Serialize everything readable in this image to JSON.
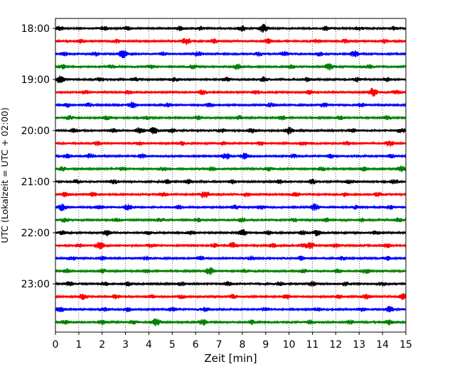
{
  "chart_data": {
    "type": "line",
    "title": "",
    "xlabel": "Zeit  [min]",
    "ylabel": "UTC (Lokalzeit = UTC + 02:00)",
    "xlim": [
      0,
      15
    ],
    "x_ticks": [
      "0",
      "1",
      "2",
      "3",
      "4",
      "5",
      "6",
      "7",
      "8",
      "9",
      "10",
      "11",
      "12",
      "13",
      "14",
      "15"
    ],
    "y_ticks": [
      {
        "label": "18:00",
        "row": 0
      },
      {
        "label": "19:00",
        "row": 4
      },
      {
        "label": "20:00",
        "row": 8
      },
      {
        "label": "21:00",
        "row": 12
      },
      {
        "label": "22:00",
        "row": 16
      },
      {
        "label": "23:00",
        "row": 20
      }
    ],
    "grid": "vertical dotted at each minute",
    "trace_interval_minutes": 15,
    "trace_count": 24,
    "trace_colors": [
      "#000000",
      "#ff0000",
      "#0000ff",
      "#008000"
    ],
    "series_note_free": true,
    "bursts": [
      [
        [
          0.2,
          0.5
        ],
        [
          2.1,
          0.5
        ],
        [
          3.1,
          0.5
        ],
        [
          5.3,
          0.5
        ],
        [
          6.2,
          0.5
        ],
        [
          8.0,
          0.7
        ],
        [
          8.9,
          1.2
        ],
        [
          11.6,
          0.5
        ],
        [
          13.0,
          0.5
        ],
        [
          14.5,
          0.5
        ]
      ],
      [
        [
          1.1,
          0.5
        ],
        [
          2.6,
          0.5
        ],
        [
          5.6,
          1.0
        ],
        [
          6.8,
          0.5
        ],
        [
          9.1,
          0.6
        ],
        [
          11.2,
          0.5
        ],
        [
          12.4,
          0.5
        ],
        [
          14.1,
          0.5
        ]
      ],
      [
        [
          0.4,
          0.5
        ],
        [
          1.7,
          0.5
        ],
        [
          2.9,
          1.2
        ],
        [
          4.6,
          0.5
        ],
        [
          6.1,
          0.6
        ],
        [
          8.7,
          0.5
        ],
        [
          9.8,
          0.6
        ],
        [
          11.3,
          0.5
        ],
        [
          12.8,
          0.8
        ]
      ],
      [
        [
          0.3,
          0.5
        ],
        [
          2.4,
          0.5
        ],
        [
          4.1,
          0.5
        ],
        [
          5.9,
          0.6
        ],
        [
          7.8,
          0.8
        ],
        [
          10.1,
          0.5
        ],
        [
          11.7,
          0.9
        ],
        [
          13.4,
          0.5
        ]
      ],
      [
        [
          0.2,
          1.0
        ],
        [
          1.9,
          0.5
        ],
        [
          3.4,
          0.5
        ],
        [
          5.1,
          0.5
        ],
        [
          7.3,
          0.5
        ],
        [
          8.9,
          0.6
        ],
        [
          10.8,
          0.5
        ],
        [
          12.9,
          0.6
        ],
        [
          14.2,
          0.5
        ]
      ],
      [
        [
          1.3,
          0.5
        ],
        [
          3.1,
          0.5
        ],
        [
          6.3,
          0.6
        ],
        [
          8.6,
          0.5
        ],
        [
          10.9,
          0.5
        ],
        [
          13.6,
          1.2
        ],
        [
          14.6,
          0.5
        ]
      ],
      [
        [
          0.5,
          0.5
        ],
        [
          1.4,
          0.5
        ],
        [
          3.3,
          0.8
        ],
        [
          4.8,
          0.5
        ],
        [
          6.6,
          0.5
        ],
        [
          9.2,
          0.5
        ],
        [
          11.5,
          0.6
        ],
        [
          13.1,
          0.5
        ]
      ],
      [
        [
          0.6,
          0.5
        ],
        [
          2.2,
          0.5
        ],
        [
          3.9,
          0.5
        ],
        [
          6.1,
          0.5
        ],
        [
          7.9,
          0.5
        ],
        [
          9.7,
          0.6
        ],
        [
          12.2,
          0.5
        ],
        [
          14.2,
          0.5
        ]
      ],
      [
        [
          0.8,
          0.5
        ],
        [
          2.5,
          0.5
        ],
        [
          3.6,
          0.8
        ],
        [
          4.2,
          0.9
        ],
        [
          5.0,
          0.5
        ],
        [
          7.1,
          0.5
        ],
        [
          8.4,
          0.5
        ],
        [
          10.0,
          1.1
        ],
        [
          12.7,
          0.5
        ],
        [
          14.8,
          0.6
        ]
      ],
      [
        [
          1.8,
          0.5
        ],
        [
          3.6,
          0.5
        ],
        [
          5.4,
          0.5
        ],
        [
          7.2,
          0.5
        ],
        [
          8.8,
          0.5
        ],
        [
          10.6,
          0.5
        ],
        [
          12.5,
          0.5
        ],
        [
          14.3,
          0.8
        ]
      ],
      [
        [
          0.5,
          0.5
        ],
        [
          1.5,
          0.7
        ],
        [
          3.7,
          0.5
        ],
        [
          7.3,
          0.9
        ],
        [
          8.1,
          0.8
        ],
        [
          10.2,
          0.5
        ],
        [
          11.8,
          0.5
        ],
        [
          14.4,
          0.5
        ]
      ],
      [
        [
          0.3,
          0.5
        ],
        [
          2.9,
          0.5
        ],
        [
          4.6,
          0.5
        ],
        [
          6.7,
          0.5
        ],
        [
          9.1,
          0.5
        ],
        [
          11.4,
          0.5
        ],
        [
          13.2,
          0.5
        ],
        [
          14.8,
          0.8
        ]
      ],
      [
        [
          0.9,
          0.5
        ],
        [
          2.5,
          0.6
        ],
        [
          4.8,
          0.5
        ],
        [
          5.7,
          0.6
        ],
        [
          7.6,
          0.5
        ],
        [
          9.6,
          0.5
        ],
        [
          11.0,
          0.6
        ],
        [
          12.6,
          0.5
        ],
        [
          14.5,
          0.6
        ]
      ],
      [
        [
          0.4,
          0.6
        ],
        [
          1.6,
          0.5
        ],
        [
          4.6,
          0.5
        ],
        [
          6.4,
          1.1
        ],
        [
          8.2,
          0.5
        ],
        [
          10.3,
          0.5
        ],
        [
          12.4,
          0.5
        ],
        [
          13.8,
          0.5
        ]
      ],
      [
        [
          0.3,
          1.0
        ],
        [
          1.9,
          0.5
        ],
        [
          3.1,
          0.8
        ],
        [
          5.3,
          0.5
        ],
        [
          7.7,
          0.5
        ],
        [
          8.8,
          0.5
        ],
        [
          11.1,
          0.9
        ],
        [
          12.9,
          0.5
        ],
        [
          14.3,
          0.5
        ]
      ],
      [
        [
          0.4,
          0.5
        ],
        [
          2.6,
          0.5
        ],
        [
          4.5,
          0.5
        ],
        [
          6.1,
          0.5
        ],
        [
          8.0,
          0.5
        ],
        [
          10.2,
          0.5
        ],
        [
          11.6,
          0.5
        ],
        [
          13.1,
          0.5
        ],
        [
          14.7,
          0.5
        ]
      ],
      [
        [
          0.3,
          0.5
        ],
        [
          2.2,
          0.8
        ],
        [
          4.0,
          0.5
        ],
        [
          5.8,
          0.5
        ],
        [
          8.0,
          0.9
        ],
        [
          9.1,
          0.5
        ],
        [
          10.6,
          0.5
        ],
        [
          11.2,
          0.8
        ],
        [
          13.7,
          0.5
        ]
      ],
      [
        [
          1.0,
          0.5
        ],
        [
          1.9,
          1.0
        ],
        [
          4.1,
          0.5
        ],
        [
          6.8,
          0.5
        ],
        [
          7.6,
          0.8
        ],
        [
          9.3,
          0.5
        ],
        [
          10.6,
          0.5
        ],
        [
          10.9,
          0.9
        ],
        [
          12.0,
          0.5
        ],
        [
          14.2,
          0.5
        ]
      ],
      [
        [
          0.7,
          0.5
        ],
        [
          2.0,
          0.5
        ],
        [
          3.9,
          0.5
        ],
        [
          6.2,
          0.5
        ],
        [
          8.4,
          0.5
        ],
        [
          10.5,
          0.5
        ],
        [
          12.3,
          0.5
        ],
        [
          14.2,
          0.5
        ]
      ],
      [
        [
          0.5,
          0.5
        ],
        [
          2.0,
          0.5
        ],
        [
          3.9,
          0.5
        ],
        [
          6.6,
          1.1
        ],
        [
          8.1,
          0.5
        ],
        [
          10.6,
          0.5
        ],
        [
          12.1,
          0.5
        ],
        [
          13.3,
          0.6
        ]
      ],
      [
        [
          0.6,
          0.5
        ],
        [
          2.1,
          0.5
        ],
        [
          3.1,
          0.5
        ],
        [
          5.4,
          0.5
        ],
        [
          7.4,
          0.5
        ],
        [
          9.6,
          0.5
        ],
        [
          11.0,
          0.6
        ],
        [
          12.4,
          0.5
        ],
        [
          14.0,
          0.5
        ]
      ],
      [
        [
          1.2,
          0.8
        ],
        [
          2.6,
          0.5
        ],
        [
          4.1,
          0.5
        ],
        [
          5.4,
          0.5
        ],
        [
          7.6,
          0.5
        ],
        [
          9.9,
          0.5
        ],
        [
          12.1,
          0.5
        ],
        [
          13.3,
          0.6
        ],
        [
          14.9,
          0.8
        ]
      ],
      [
        [
          0.2,
          0.8
        ],
        [
          2.1,
          0.5
        ],
        [
          3.1,
          0.5
        ],
        [
          5.0,
          0.5
        ],
        [
          6.4,
          0.5
        ],
        [
          9.0,
          0.5
        ],
        [
          11.2,
          0.5
        ],
        [
          13.1,
          0.5
        ],
        [
          14.3,
          0.8
        ]
      ],
      [
        [
          0.4,
          0.5
        ],
        [
          2.0,
          0.5
        ],
        [
          3.3,
          0.5
        ],
        [
          4.3,
          1.1
        ],
        [
          6.3,
          0.9
        ],
        [
          8.4,
          0.5
        ],
        [
          10.9,
          0.5
        ],
        [
          12.6,
          0.5
        ],
        [
          14.3,
          0.8
        ]
      ]
    ]
  }
}
